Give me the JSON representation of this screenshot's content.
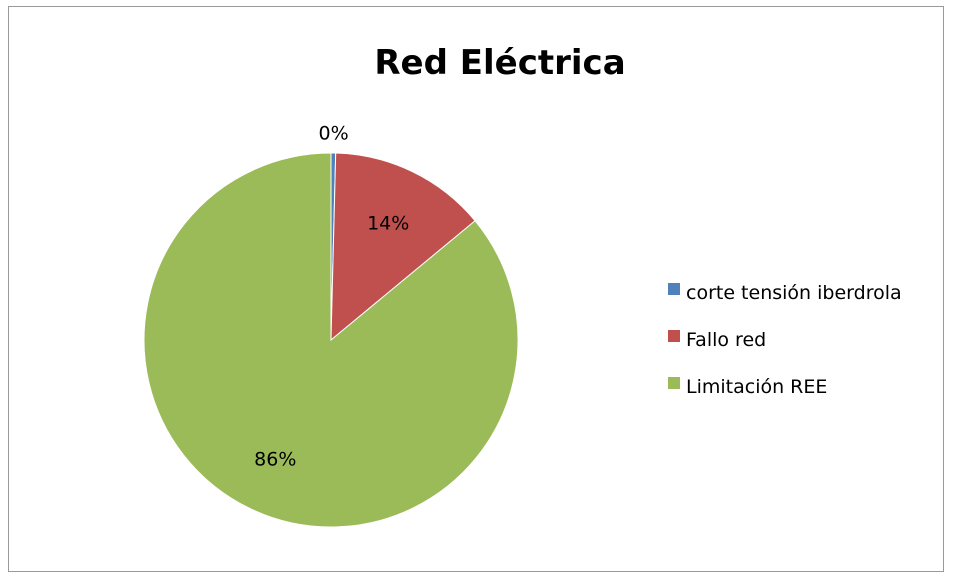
{
  "chart_data": {
    "type": "pie",
    "title": "Red Eléctrica",
    "start_angle_deg": 0,
    "direction": "clockwise",
    "legend_position": "right",
    "series": [
      {
        "categories": [
          "corte tensión iberdrola",
          "Fallo red",
          "Limitación REE"
        ],
        "values": [
          0.4,
          13.6,
          86.0
        ],
        "data_labels": [
          "0%",
          "14%",
          "86%"
        ],
        "colors": [
          "#4f81bd",
          "#c0504d",
          "#9bbb59"
        ]
      }
    ]
  }
}
